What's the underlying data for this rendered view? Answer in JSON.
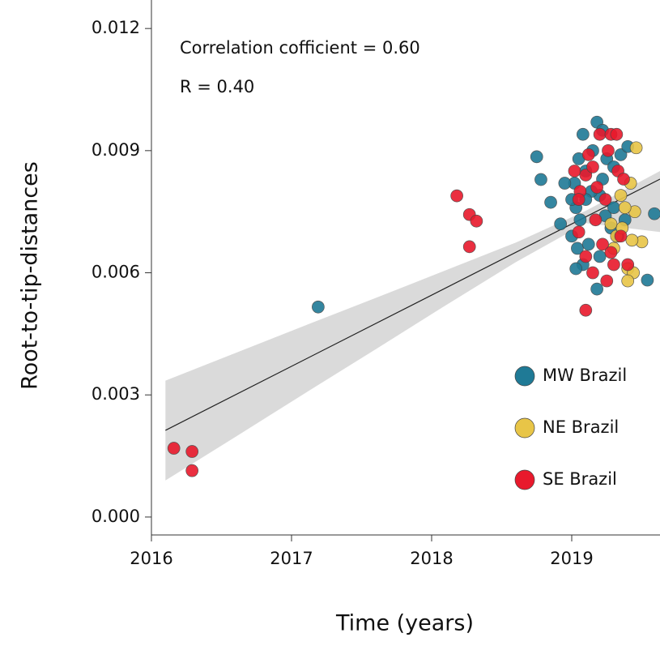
{
  "chart_data": {
    "type": "scatter",
    "xlabel": "Time (years)",
    "ylabel": "Root-to-tip-distances",
    "annotations": [
      "Correlation cofficient = 0.60",
      "R = 0.40"
    ],
    "xlim": [
      2016,
      2019.63
    ],
    "ylim": [
      -0.00044,
      0.0127
    ],
    "xticks": [
      2016,
      2017,
      2018,
      2019
    ],
    "yticks": [
      {
        "value": 0,
        "label": "0.000"
      },
      0.003,
      0.006,
      0.009,
      0.012
    ],
    "legend": "right",
    "fit": {
      "color": "#222222",
      "x": [
        2016.1,
        2019.63
      ],
      "y": [
        0.00213,
        0.0083
      ]
    },
    "band": {
      "color": "#d3d3d3",
      "x": [
        2016.1,
        2016.6,
        2017.1,
        2017.6,
        2018.1,
        2018.6,
        2019.1,
        2019.63
      ],
      "lower": [
        0.0009,
        0.00197,
        0.00305,
        0.00412,
        0.0052,
        0.00626,
        0.00722,
        0.007
      ],
      "upper": [
        0.00335,
        0.00403,
        0.00471,
        0.00538,
        0.00606,
        0.00674,
        0.00752,
        0.0085
      ]
    },
    "series": [
      {
        "name": "MW Brazil",
        "color": "#1f7a96",
        "x": [
          2017.19,
          2018.75,
          2018.78,
          2018.85,
          2019.59,
          2019.54,
          2019.02,
          2019.05,
          2019.08,
          2019.18,
          2019.22,
          2019.1,
          2019.15,
          2019.25,
          2019.3,
          2019.35,
          2019.4,
          2019.03,
          2019.06,
          2019.0,
          2019.04,
          2019.08,
          2019.03,
          2019.12,
          2019.2,
          2019.24,
          2019.28,
          2019.18,
          2019.14,
          2019.3,
          2019.33,
          2019.1,
          2018.92,
          2018.95,
          2019.22,
          2019.38,
          2019.0,
          2019.2
        ],
        "values": [
          0.00516,
          0.00885,
          0.00829,
          0.00773,
          0.00745,
          0.00582,
          0.0082,
          0.0088,
          0.0094,
          0.0097,
          0.0095,
          0.0085,
          0.009,
          0.0088,
          0.0086,
          0.0089,
          0.0091,
          0.0076,
          0.0073,
          0.0069,
          0.0066,
          0.0062,
          0.0061,
          0.0067,
          0.0079,
          0.0074,
          0.0071,
          0.0056,
          0.008,
          0.0076,
          0.0069,
          0.0078,
          0.0072,
          0.0082,
          0.0083,
          0.0073,
          0.0078,
          0.0064
        ]
      },
      {
        "name": "NE Brazil",
        "color": "#e8c547",
        "x": [
          2019.46,
          2019.5,
          2019.42,
          2019.45,
          2019.38,
          2019.35,
          2019.4,
          2019.44,
          2019.4,
          2019.43,
          2019.3,
          2019.32,
          2019.36,
          2019.28
        ],
        "values": [
          0.00907,
          0.00676,
          0.0082,
          0.0075,
          0.0076,
          0.0079,
          0.0061,
          0.006,
          0.0058,
          0.0068,
          0.0066,
          0.0069,
          0.0071,
          0.0072
        ]
      },
      {
        "name": "SE Brazil",
        "color": "#e8192c",
        "x": [
          2016.16,
          2016.29,
          2016.29,
          2018.18,
          2018.27,
          2018.32,
          2018.27,
          2019.1,
          2019.02,
          2019.06,
          2019.1,
          2019.15,
          2019.2,
          2019.28,
          2019.32,
          2019.26,
          2019.12,
          2019.05,
          2019.17,
          2019.22,
          2019.28,
          2019.3,
          2019.35,
          2019.4,
          2019.1,
          2019.15,
          2019.25,
          2019.33,
          2019.37,
          2019.05,
          2019.18,
          2019.24
        ],
        "values": [
          0.00169,
          0.00161,
          0.00114,
          0.00789,
          0.00743,
          0.00727,
          0.00664,
          0.00508,
          0.0085,
          0.008,
          0.0084,
          0.0086,
          0.0094,
          0.0094,
          0.0094,
          0.009,
          0.0089,
          0.0078,
          0.0073,
          0.0067,
          0.0065,
          0.0062,
          0.0069,
          0.0062,
          0.0064,
          0.006,
          0.0058,
          0.0085,
          0.0083,
          0.007,
          0.0081,
          0.0078
        ]
      }
    ]
  }
}
